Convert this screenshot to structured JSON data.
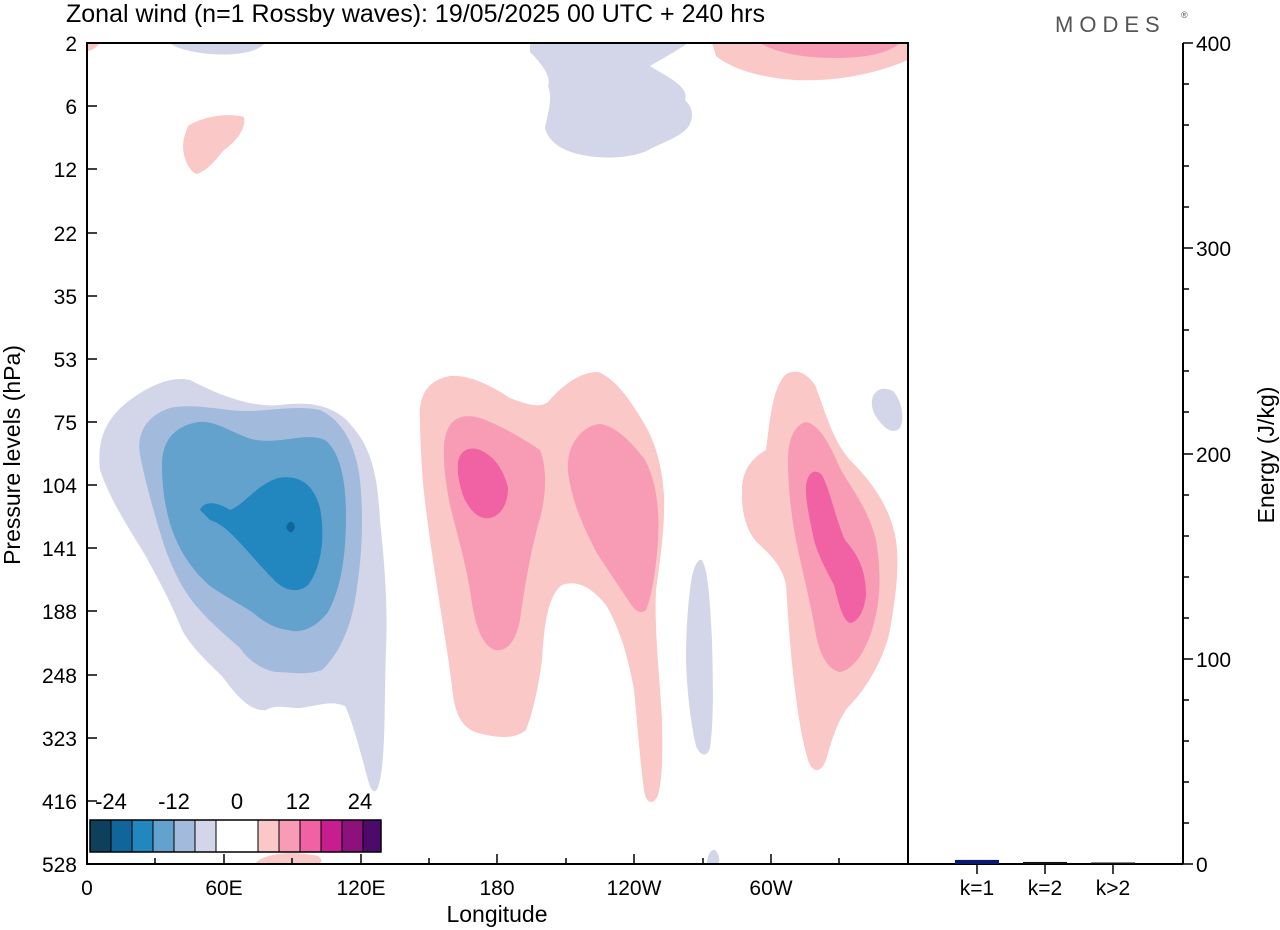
{
  "header": {
    "title": "Zonal wind (n=1 Rossby waves):  19/05/2025  00 UTC  + 240 hrs",
    "brand": "MODES",
    "brand_mark": "®"
  },
  "chart_data": [
    {
      "type": "heatmap",
      "title": "Zonal wind (n=1 Rossby waves):  19/05/2025  00 UTC  + 240 hrs",
      "xlabel": "Longitude",
      "ylabel": "Pressure levels (hPa)",
      "x_ticks": [
        "0",
        "60E",
        "120E",
        "180",
        "120W",
        "60W"
      ],
      "y_ticks": [
        "2",
        "6",
        "12",
        "22",
        "35",
        "53",
        "75",
        "104",
        "141",
        "188",
        "248",
        "323",
        "416",
        "528"
      ],
      "colorbar": {
        "tick_labels": [
          "-24",
          "-12",
          "0",
          "12",
          "24"
        ],
        "colors": [
          "#0e3f5c",
          "#10669b",
          "#2286bf",
          "#62a2cc",
          "#a2bbdc",
          "#d3d6e8",
          "#ffffff",
          "#ffffff",
          "#fac8c6",
          "#f79cb4",
          "#f062a3",
          "#c71e8f",
          "#8d117a",
          "#4c0a6a"
        ]
      },
      "features": [
        {
          "sign": "negative",
          "longitude_center": "85E",
          "pressure_center_hPa": 125,
          "min_level": -24
        },
        {
          "sign": "positive",
          "longitude_center": "175E",
          "pressure_center_hPa": 104,
          "max_level": 12
        },
        {
          "sign": "positive",
          "longitude_center": "150W",
          "pressure_center_hPa": 110,
          "max_level": 8
        },
        {
          "sign": "positive",
          "longitude_center": "45W",
          "pressure_center_hPa": 130,
          "max_level": 12
        }
      ]
    },
    {
      "type": "bar",
      "ylabel": "Energy (J/kg)",
      "categories": [
        "k=1",
        "k=2",
        "k>2"
      ],
      "values": [
        2,
        1,
        0.5
      ],
      "ylim": [
        0,
        400
      ],
      "y_ticks": [
        "0",
        "100",
        "200",
        "300",
        "400"
      ],
      "bar_colors": [
        "#0a1a6e",
        "#111111",
        "#111111"
      ]
    }
  ]
}
